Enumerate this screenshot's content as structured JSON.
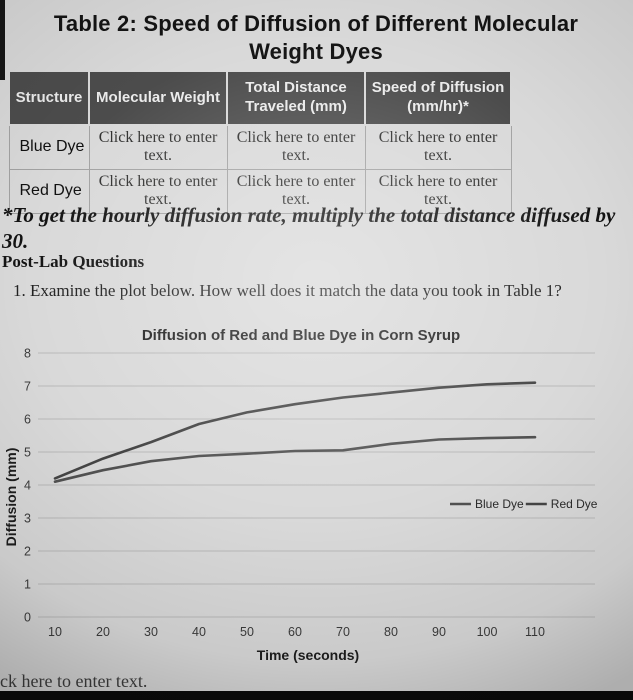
{
  "page": {
    "title": "Table 2: Speed of Diffusion of Different Molecular Weight Dyes",
    "footnote": "*To get the hourly diffusion rate, multiply the total distance diffused by 30.",
    "section_heading": "Post-Lab Questions",
    "question": "1. Examine the plot below. How well does it match the data you took in Table 1?",
    "bottom_partial_text": "ck here to enter text."
  },
  "table": {
    "headers": [
      "Structure",
      "Molecular Weight",
      "Total Distance Traveled (mm)",
      "Speed of Diffusion (mm/hr)*"
    ],
    "rows": [
      {
        "label": "Blue Dye",
        "cells": [
          "Click here to enter text.",
          "Click here to enter text.",
          "Click here to enter text."
        ]
      },
      {
        "label": "Red Dye",
        "cells": [
          "Click here to enter text.",
          "Click here to enter text.",
          "Click here to enter text."
        ]
      }
    ]
  },
  "chart_data": {
    "type": "line",
    "title": "Diffusion of Red and Blue Dye in Corn Syrup",
    "xlabel": "Time (seconds)",
    "ylabel": "Diffusion (mm)",
    "x": [
      10,
      20,
      30,
      40,
      50,
      60,
      70,
      80,
      90,
      100,
      110
    ],
    "ylim": [
      0,
      8
    ],
    "grid": true,
    "legend_position": "right-middle-inside",
    "series": [
      {
        "name": "Blue Dye",
        "color": "#515151",
        "values": [
          4.1,
          4.45,
          4.72,
          4.88,
          4.95,
          5.03,
          5.05,
          5.25,
          5.38,
          5.42,
          5.45
        ]
      },
      {
        "name": "Red Dye",
        "color": "#454545",
        "values": [
          4.2,
          4.8,
          5.3,
          5.85,
          6.2,
          6.45,
          6.65,
          6.8,
          6.95,
          7.05,
          7.1
        ]
      }
    ]
  },
  "colors": {
    "page_bg": "#d9d9d9",
    "table_header_bg": "#4c4c4c",
    "table_header_text": "#ebebeb",
    "gridline": "#b9b9b9",
    "bottom_bar": "#0b0b0b"
  }
}
